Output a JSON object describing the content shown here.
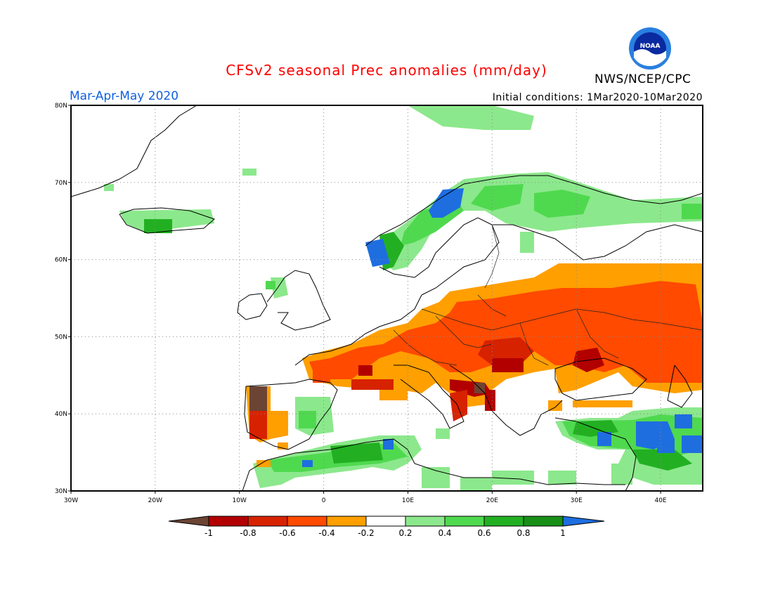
{
  "header": {
    "title": "CFSv2 seasonal Prec anomalies (mm/day)",
    "season": "Mar-Apr-May 2020",
    "initial_conditions": "Initial conditions: 1Mar2020-10Mar2020",
    "agency": "NWS/NCEP/CPC",
    "logo_text": "NOAA"
  },
  "map": {
    "lon_range": [
      -30,
      45
    ],
    "lat_range": [
      30,
      80
    ],
    "lon_labels": [
      "30W",
      "20W",
      "10W",
      "0",
      "10E",
      "20E",
      "30E",
      "40E"
    ],
    "lat_labels": [
      "30N",
      "40N",
      "50N",
      "60N",
      "70N",
      "80N"
    ],
    "anomaly_regions": [
      {
        "name": "western-norway",
        "category": "0.6 to 0.8"
      },
      {
        "name": "norwegian-coast",
        "category": "above 1"
      },
      {
        "name": "northern-scandinavia",
        "category": "0.4 to 0.6"
      },
      {
        "name": "central-europe",
        "category": "-0.6 to -0.4"
      },
      {
        "name": "eastern-europe",
        "category": "-0.6 to -0.4"
      },
      {
        "name": "balkans",
        "category": "-0.8 to -0.6"
      },
      {
        "name": "portugal",
        "category": "below -1"
      },
      {
        "name": "north-africa",
        "category": "0.6 to 0.8"
      },
      {
        "name": "turkey-east",
        "category": "above 1"
      },
      {
        "name": "france",
        "category": "-0.6 to -0.4"
      }
    ]
  },
  "legend": {
    "labels": [
      "-1",
      "-0.8",
      "-0.6",
      "-0.4",
      "-0.2",
      "0.2",
      "0.4",
      "0.6",
      "0.8",
      "1"
    ],
    "colors": [
      "#6b4433",
      "#b20000",
      "#d72200",
      "#ff4a00",
      "#ff9f00",
      "#ffffff",
      "#8ce88c",
      "#4fd94f",
      "#22b022",
      "#178f17",
      "#1e6ee0"
    ]
  }
}
